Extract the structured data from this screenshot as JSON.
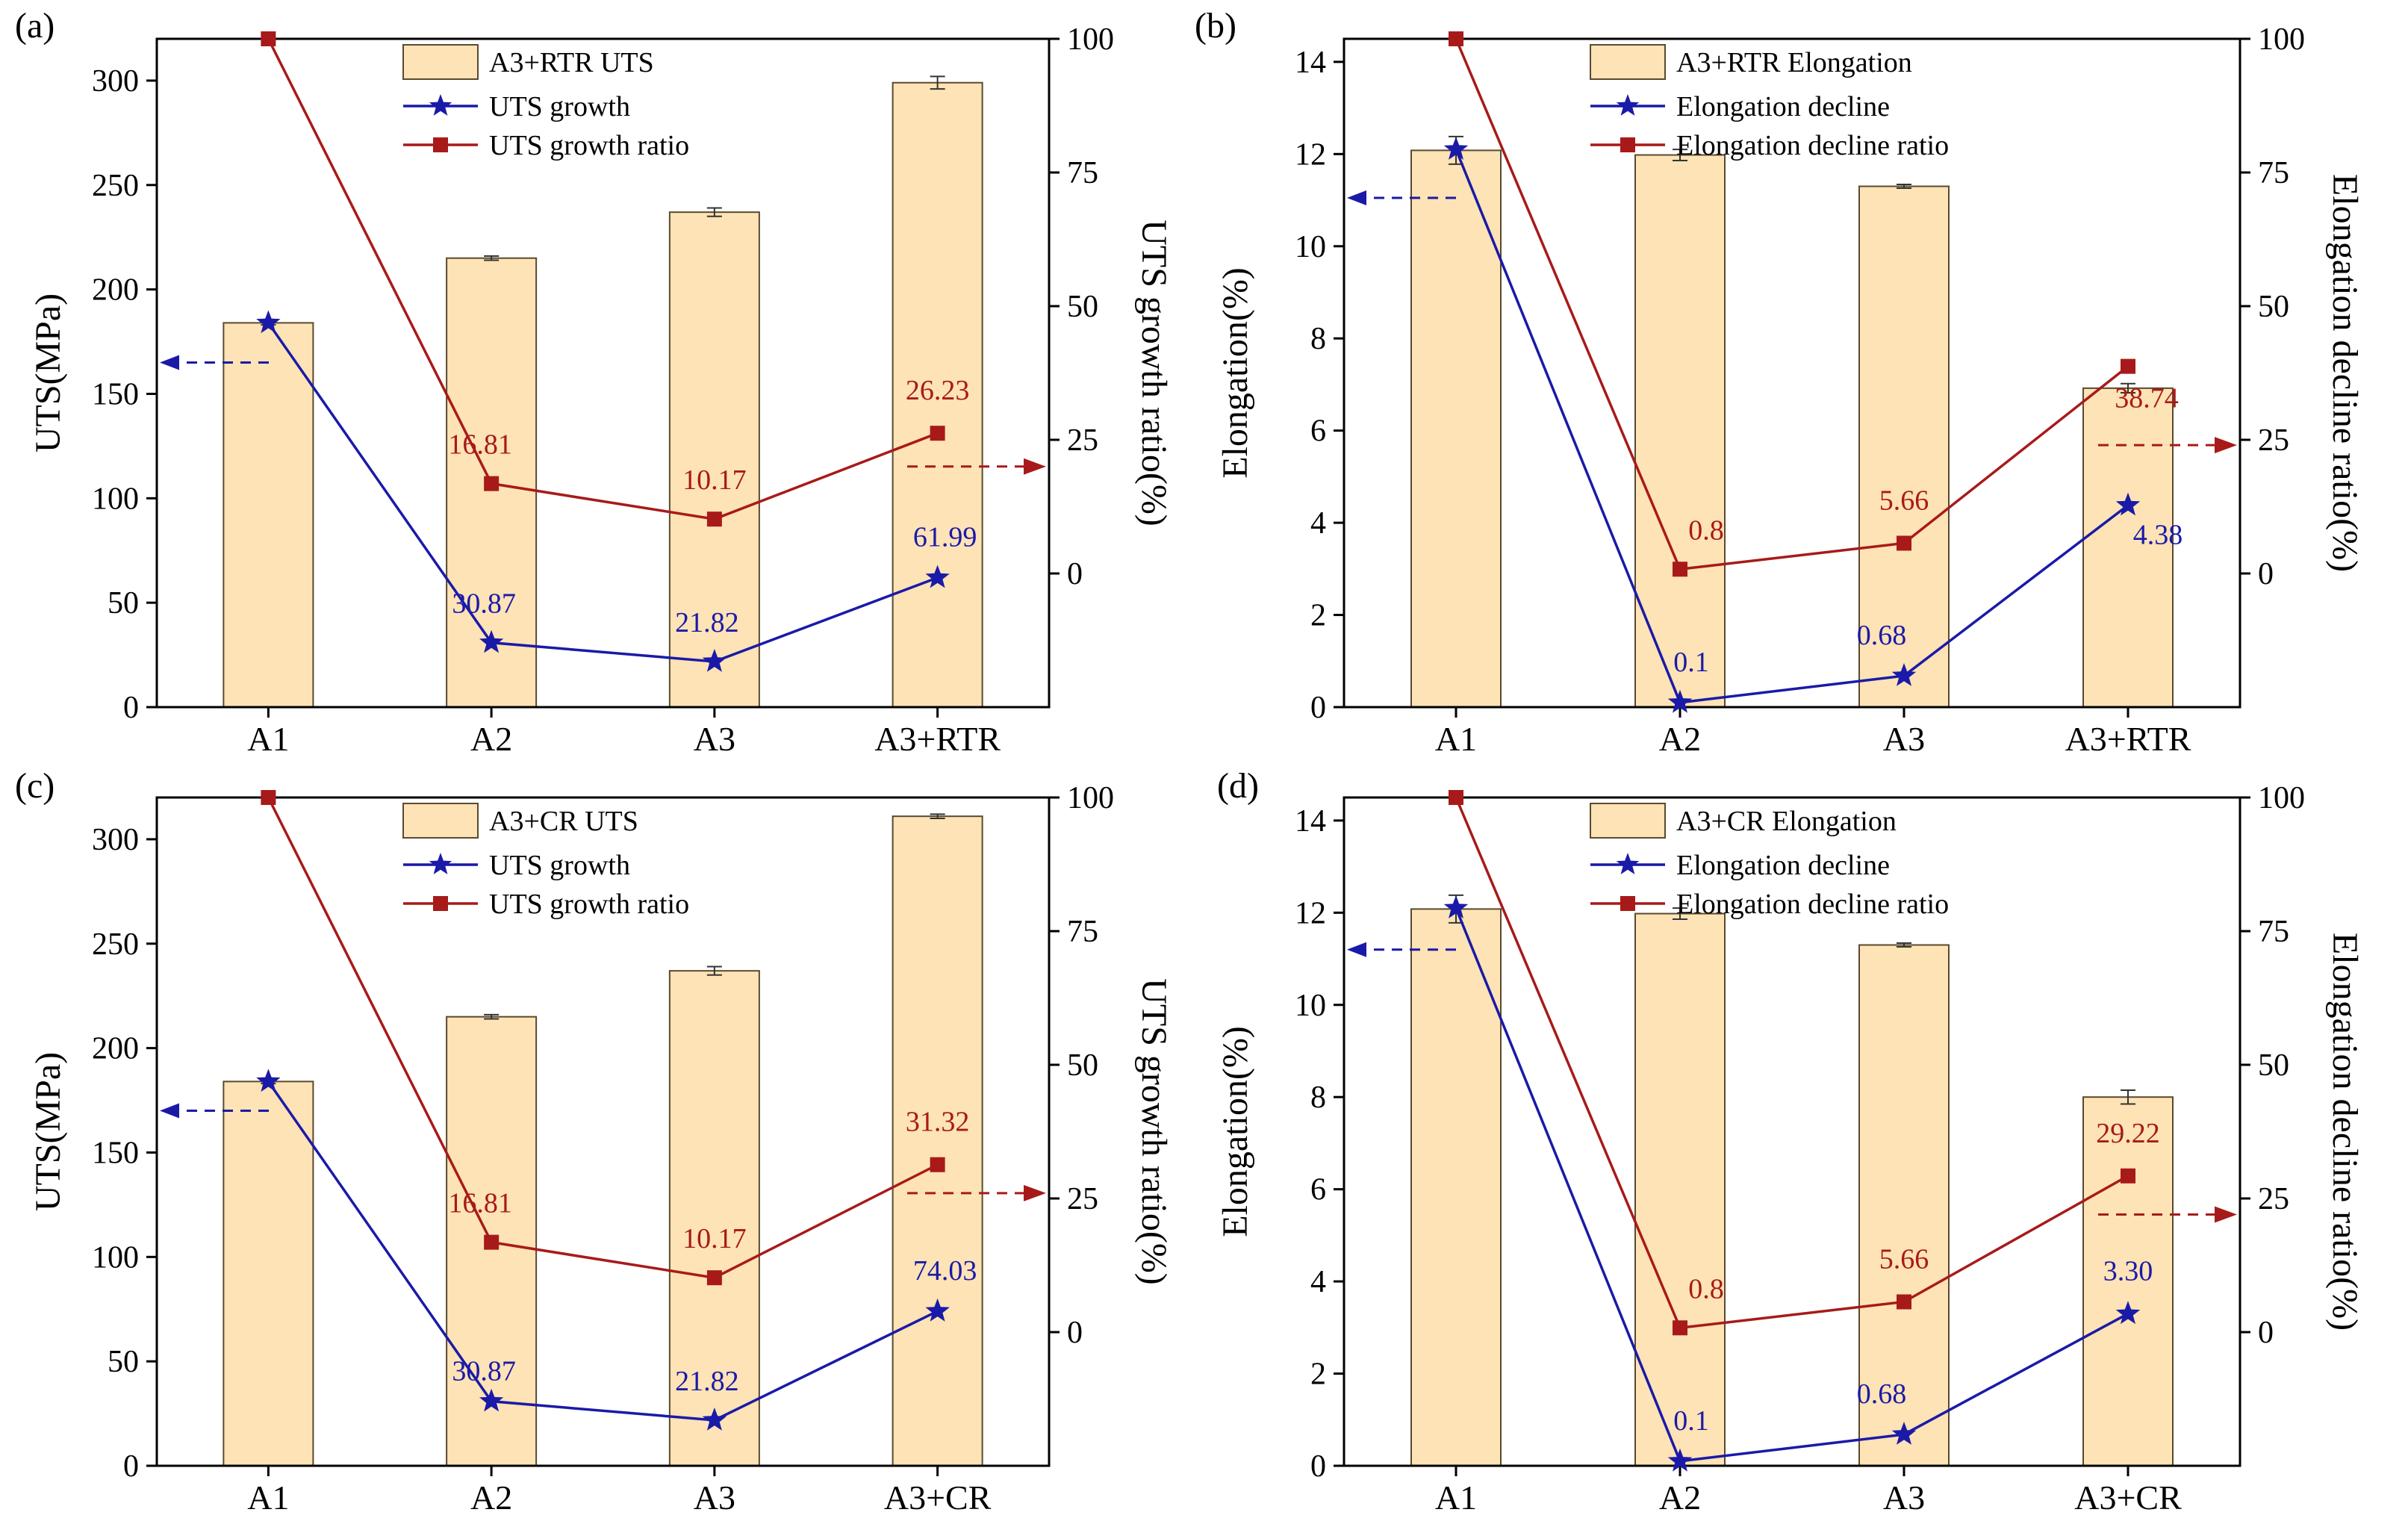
{
  "colors": {
    "bar_fill": "#fde3b5",
    "bar_stroke": "#5a4a30",
    "growth": "#1a1aa8",
    "ratio": "#a81a1a",
    "axis": "#000000"
  },
  "chart_data": [
    {
      "panel": "(a)",
      "type": "bar+line",
      "categories": [
        "A1",
        "A2",
        "A3",
        "A3+RTR"
      ],
      "ylabel": "UTS(MPa)",
      "y2label": "UTS growth ratio(%)",
      "ylim": [
        0,
        320
      ],
      "yticks": [
        0,
        50,
        100,
        150,
        200,
        250,
        300
      ],
      "y2lim": [
        -25,
        100
      ],
      "y2ticks": [
        0,
        25,
        50,
        75,
        100
      ],
      "bars": {
        "name": "A3+RTR UTS",
        "values": [
          184,
          215,
          237,
          299
        ],
        "errors": [
          1,
          1,
          2,
          3
        ]
      },
      "growth": {
        "name": "UTS growth",
        "values": [
          184,
          30.87,
          21.82,
          61.99
        ],
        "labels": [
          "",
          "30.87",
          "21.82",
          "61.99"
        ]
      },
      "ratio": {
        "name": "UTS growth ratio",
        "values": [
          100,
          16.81,
          10.17,
          26.23
        ],
        "labels": [
          "",
          "16.81",
          "10.17",
          "26.23"
        ]
      },
      "arrows": {
        "left_at": 165,
        "right_at": 20
      }
    },
    {
      "panel": "(b)",
      "type": "bar+line",
      "categories": [
        "A1",
        "A2",
        "A3",
        "A3+RTR"
      ],
      "ylabel": "Elongation(%)",
      "y2label": "Elongation decline ratio(%)",
      "ylim": [
        0,
        14.5
      ],
      "yticks": [
        0,
        2,
        4,
        6,
        8,
        10,
        12,
        14
      ],
      "y2lim": [
        -25,
        100
      ],
      "y2ticks": [
        0,
        25,
        50,
        75,
        100
      ],
      "bars": {
        "name": "A3+RTR Elongation",
        "values": [
          12.08,
          11.98,
          11.3,
          6.92
        ],
        "errors": [
          0.3,
          0.12,
          0.04,
          0.1
        ]
      },
      "growth": {
        "name": "Elongation decline",
        "values": [
          12.1,
          0.1,
          0.68,
          4.38
        ],
        "labels": [
          "",
          "0.1",
          "0.68",
          "4.38"
        ]
      },
      "ratio": {
        "name": "Elongation decline ratio",
        "values": [
          100,
          0.8,
          5.66,
          38.74
        ],
        "labels": [
          "",
          "0.8",
          "5.66",
          "38.74"
        ]
      },
      "arrows": {
        "left_at": 11.05,
        "right_at": 24
      }
    },
    {
      "panel": "(c)",
      "type": "bar+line",
      "categories": [
        "A1",
        "A2",
        "A3",
        "A3+CR"
      ],
      "ylabel": "UTS(MPa)",
      "y2label": "UTS growth ratio(%)",
      "ylim": [
        0,
        320
      ],
      "yticks": [
        0,
        50,
        100,
        150,
        200,
        250,
        300
      ],
      "y2lim": [
        -25,
        100
      ],
      "y2ticks": [
        0,
        25,
        50,
        75,
        100
      ],
      "bars": {
        "name": "A3+CR UTS",
        "values": [
          184,
          215,
          237,
          311
        ],
        "errors": [
          1,
          1,
          2,
          1
        ]
      },
      "growth": {
        "name": "UTS growth",
        "values": [
          184,
          30.87,
          21.82,
          74.03
        ],
        "labels": [
          "",
          "30.87",
          "21.82",
          "74.03"
        ]
      },
      "ratio": {
        "name": "UTS growth ratio",
        "values": [
          100,
          16.81,
          10.17,
          31.32
        ],
        "labels": [
          "",
          "16.81",
          "10.17",
          "31.32"
        ]
      },
      "arrows": {
        "left_at": 170,
        "right_at": 26
      }
    },
    {
      "panel": "(d)",
      "type": "bar+line",
      "categories": [
        "A1",
        "A2",
        "A3",
        "A3+CR"
      ],
      "ylabel": "Elongation(%)",
      "y2label": "Elongation decline ratio(%)",
      "ylim": [
        0,
        14.5
      ],
      "yticks": [
        0,
        2,
        4,
        6,
        8,
        10,
        12,
        14
      ],
      "y2lim": [
        -25,
        100
      ],
      "y2ticks": [
        0,
        25,
        50,
        75,
        100
      ],
      "bars": {
        "name": "A3+CR Elongation",
        "values": [
          12.08,
          11.98,
          11.3,
          8.0
        ],
        "errors": [
          0.3,
          0.12,
          0.04,
          0.15
        ]
      },
      "growth": {
        "name": "Elongation decline",
        "values": [
          12.1,
          0.1,
          0.68,
          3.3
        ],
        "labels": [
          "",
          "0.1",
          "0.68",
          "3.30"
        ]
      },
      "ratio": {
        "name": "Elongation decline ratio",
        "values": [
          100,
          0.8,
          5.66,
          29.22
        ],
        "labels": [
          "",
          "0.8",
          "5.66",
          "29.22"
        ]
      },
      "arrows": {
        "left_at": 11.2,
        "right_at": 22
      }
    }
  ]
}
